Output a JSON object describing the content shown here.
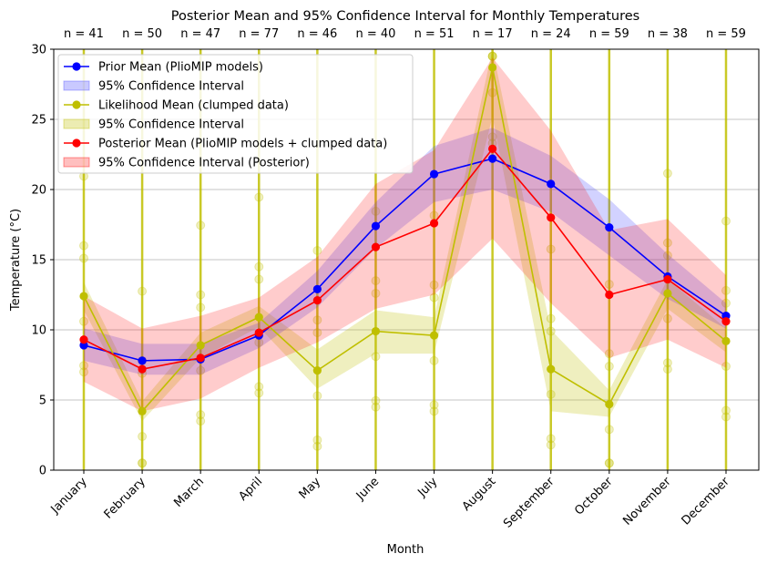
{
  "chart_data": {
    "type": "line",
    "title": "Posterior Mean and 95% Confidence Interval for Monthly Temperatures",
    "xlabel": "Month",
    "ylabel": "Temperature (°C)",
    "ylim": [
      0,
      30
    ],
    "yticks": [
      0,
      5,
      10,
      15,
      20,
      25,
      30
    ],
    "grid": "horizontal",
    "legend_position": "top-left",
    "categories": [
      "January",
      "February",
      "March",
      "April",
      "May",
      "June",
      "July",
      "August",
      "September",
      "October",
      "November",
      "December"
    ],
    "sample_counts": [
      "n = 41",
      "n = 50",
      "n = 47",
      "n = 77",
      "n = 46",
      "n = 40",
      "n = 51",
      "n = 17",
      "n = 24",
      "n = 59",
      "n = 38",
      "n = 59"
    ],
    "series": [
      {
        "name": "Prior Mean (PlioMIP models)",
        "ci_name": "95% Confidence Interval",
        "color": "#0000ff",
        "values": [
          8.9,
          7.8,
          7.9,
          9.6,
          12.9,
          17.4,
          21.1,
          22.2,
          20.4,
          17.3,
          13.8,
          11.0
        ],
        "ci_lower": [
          7.8,
          6.8,
          6.8,
          8.7,
          11.6,
          15.8,
          19.1,
          20.0,
          18.4,
          15.3,
          12.2,
          10.1
        ],
        "ci_upper": [
          10.1,
          9.0,
          9.0,
          10.5,
          14.2,
          19.1,
          23.1,
          24.4,
          22.4,
          19.3,
          15.4,
          11.9
        ]
      },
      {
        "name": "Likelihood Mean (clumped data)",
        "ci_name": "95% Confidence Interval",
        "color": "#bfbf00",
        "values": [
          12.4,
          4.2,
          8.9,
          10.9,
          7.1,
          9.9,
          9.6,
          28.7,
          7.2,
          4.7,
          12.6,
          9.2
        ],
        "ci_lower": [
          11.4,
          3.5,
          8.0,
          10.2,
          5.8,
          8.3,
          8.3,
          25.2,
          4.2,
          3.8,
          11.5,
          8.4
        ],
        "ci_upper": [
          13.4,
          4.9,
          9.8,
          11.7,
          8.6,
          11.4,
          10.9,
          31.0,
          10.0,
          5.7,
          13.6,
          10.1
        ]
      },
      {
        "name": "Posterior Mean (PlioMIP models + clumped data)",
        "ci_name": "95% Confidence Interval (Posterior)",
        "color": "#ff0000",
        "values": [
          9.3,
          7.2,
          8.0,
          9.8,
          12.1,
          15.9,
          17.6,
          22.9,
          18.0,
          12.5,
          13.6,
          10.6
        ],
        "ci_lower": [
          6.3,
          4.2,
          5.1,
          7.3,
          9.1,
          11.5,
          12.5,
          16.5,
          11.9,
          8.0,
          9.3,
          7.3
        ],
        "ci_upper": [
          12.4,
          10.1,
          11.0,
          12.3,
          15.2,
          20.4,
          22.8,
          29.4,
          24.2,
          17.1,
          17.9,
          13.9
        ]
      }
    ]
  }
}
